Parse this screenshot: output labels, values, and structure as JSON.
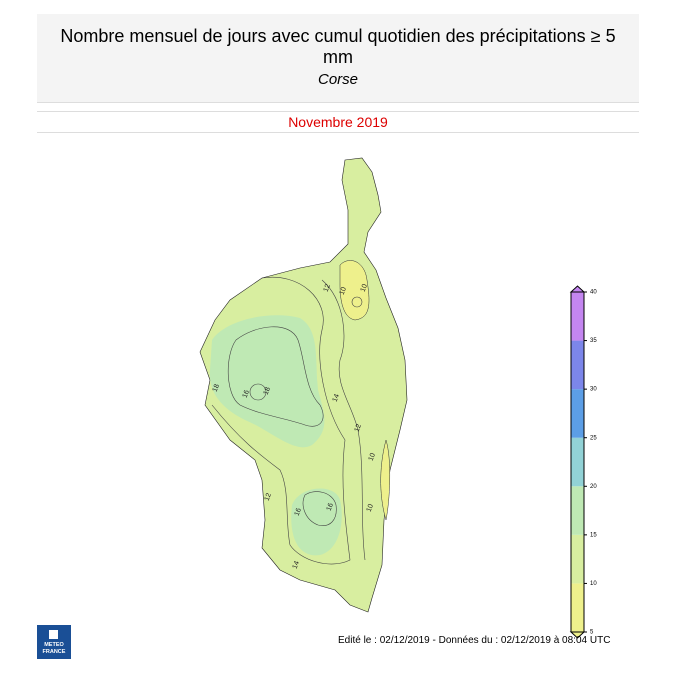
{
  "header": {
    "title": "Nombre mensuel de jours avec cumul quotidien des précipitations ≥ 5 mm",
    "subtitle": "Corse"
  },
  "period": "Novembre 2019",
  "map": {
    "contour_labels": [
      12,
      10,
      10,
      18,
      16,
      18,
      14,
      12,
      10,
      12,
      16,
      16,
      10,
      14
    ]
  },
  "colorbar": {
    "ticks": [
      5,
      10,
      15,
      20,
      25,
      30,
      35,
      40
    ],
    "colors": [
      "#eef08c",
      "#d8eea0",
      "#bfe9b4",
      "#92d2d6",
      "#5c9ee6",
      "#7c86ea",
      "#c486f0"
    ]
  },
  "footer": "Edité le : 02/12/2019 - Données du : 02/12/2019 à 08:04 UTC",
  "logo": {
    "lines": [
      "METEO",
      "FRANCE"
    ]
  }
}
